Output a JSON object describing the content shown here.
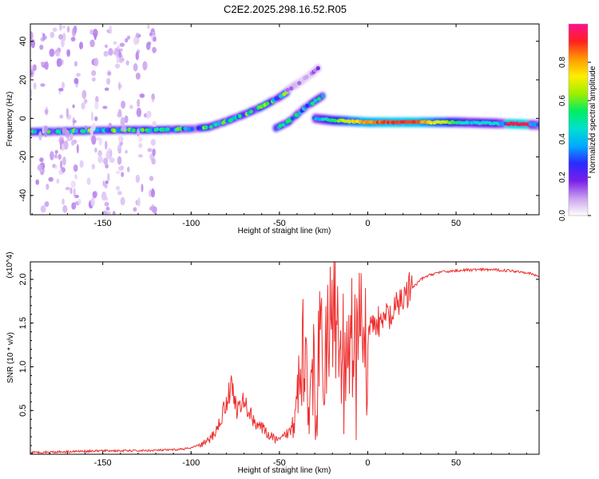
{
  "figure": {
    "title": "C2E2.2025.298.16.52.R05"
  },
  "chart_data": [
    {
      "type": "heatmap",
      "panel": "top",
      "title": "C2E2.2025.298.16.52.R05",
      "xlabel": "Height of straight line (km)",
      "ylabel": "Frequency (Hz)",
      "xlim": [
        -191,
        97
      ],
      "ylim": [
        -50,
        49
      ],
      "xticks": [
        -150,
        -100,
        -50,
        0,
        50
      ],
      "yticks": [
        -40,
        -20,
        0,
        20,
        40
      ],
      "grid": false,
      "colorbar": {
        "label": "Normalized spectral amplitude",
        "range": [
          0,
          1
        ],
        "ticks": [
          0.0,
          0.2,
          0.4,
          0.6,
          0.8
        ],
        "tick_labels": [
          "0.0",
          "0.2",
          "0.4",
          "0.6",
          "0.8"
        ],
        "colors": [
          "#ffffff",
          "#c8a0ee",
          "#7a1eea",
          "#2a2aff",
          "#00aaff",
          "#00e0d0",
          "#00ee60",
          "#a0ee00",
          "#ffee00",
          "#ff9900",
          "#ff2020",
          "#ff1090"
        ]
      },
      "features": [
        {
          "name": "main trace",
          "points": [
            [
              -191,
              -7
            ],
            [
              -160,
              -6.5
            ],
            [
              -140,
              -6
            ],
            [
              -120,
              -6
            ],
            [
              -100,
              -5.5
            ],
            [
              -90,
              -4.5
            ],
            [
              -80,
              -1.5
            ],
            [
              -70,
              2
            ],
            [
              -60,
              6
            ],
            [
              -50,
              11
            ],
            [
              -45,
              14
            ]
          ],
          "amplitude": 0.45
        },
        {
          "name": "lower branch",
          "points": [
            [
              -52,
              -5
            ],
            [
              -45,
              -2
            ],
            [
              -40,
              2
            ],
            [
              -35,
              6
            ],
            [
              -30,
              9
            ],
            [
              -25,
              12
            ]
          ],
          "amplitude": 0.4
        },
        {
          "name": "upper faint branch",
          "points": [
            [
              -45,
              15
            ],
            [
              -38,
              19
            ],
            [
              -32,
              23
            ],
            [
              -27,
              27
            ]
          ],
          "amplitude": 0.12
        },
        {
          "name": "steady line",
          "points": [
            [
              -30,
              0
            ],
            [
              -20,
              -1
            ],
            [
              0,
              -2
            ],
            [
              50,
              -2
            ],
            [
              70,
              -2.5
            ],
            [
              88,
              -3
            ],
            [
              97,
              -3.5
            ]
          ],
          "amplitude": 0.85
        },
        {
          "name": "diffuse noise region",
          "x_range": [
            -191,
            -120
          ],
          "y_range": [
            -50,
            49
          ],
          "amplitude": 0.06
        }
      ]
    },
    {
      "type": "line",
      "panel": "bottom",
      "title": "",
      "xlabel": "Height of straight line (km)",
      "ylabel": "SNR (10 * v/v)",
      "y_multiplier": "(x10^4)",
      "xlim": [
        -191,
        97
      ],
      "ylim": [
        0,
        2.2
      ],
      "xticks": [
        -150,
        -100,
        -50,
        0,
        50
      ],
      "yticks": [
        0.5,
        1.0,
        1.5,
        2.0
      ],
      "grid": false,
      "color": "#ee3030",
      "series": [
        {
          "name": "SNR",
          "x": [
            -191,
            -170,
            -150,
            -130,
            -110,
            -100,
            -90,
            -85,
            -80,
            -77,
            -74,
            -70,
            -65,
            -60,
            -55,
            -50,
            -45,
            -40,
            -37,
            -35,
            -32,
            -30,
            -28,
            -25,
            -22,
            -20,
            -17,
            -15,
            -12,
            -10,
            -7,
            -5,
            -2,
            0,
            3,
            5,
            8,
            10,
            13,
            15,
            18,
            20,
            23,
            25,
            28,
            30,
            35,
            40,
            50,
            60,
            70,
            80,
            90,
            97
          ],
          "y": [
            0.02,
            0.03,
            0.04,
            0.04,
            0.05,
            0.07,
            0.15,
            0.3,
            0.6,
            0.8,
            0.5,
            0.6,
            0.4,
            0.3,
            0.2,
            0.15,
            0.25,
            0.6,
            1.2,
            0.9,
            1.1,
            1.0,
            1.3,
            1.2,
            1.5,
            1.4,
            1.6,
            1.2,
            1.35,
            1.45,
            1.3,
            1.45,
            1.3,
            1.4,
            1.5,
            1.55,
            1.45,
            1.6,
            1.55,
            1.6,
            1.75,
            1.8,
            1.85,
            1.9,
            1.95,
            2.0,
            2.05,
            2.08,
            2.1,
            2.11,
            2.11,
            2.1,
            2.08,
            2.03
          ]
        }
      ]
    }
  ]
}
